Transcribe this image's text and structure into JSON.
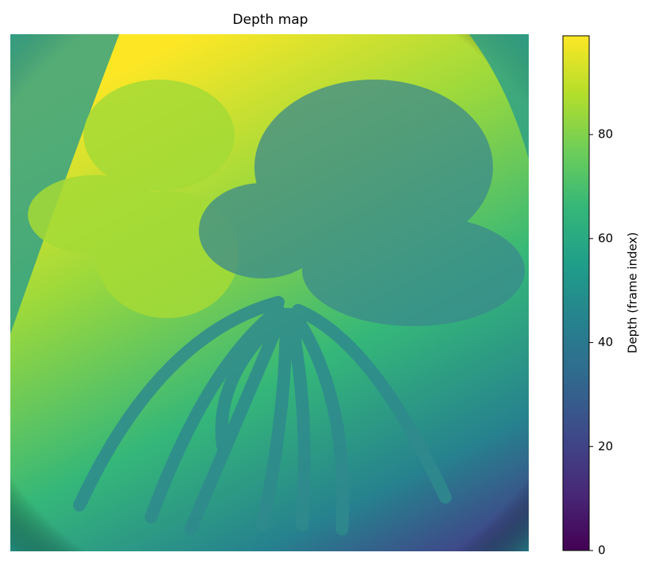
{
  "chart_data": {
    "type": "image",
    "title": "Depth map",
    "colormap": "viridis",
    "colorbar": {
      "label": "Depth (frame index)",
      "lim": [
        0,
        99
      ],
      "ticks": [
        0,
        20,
        40,
        60,
        80
      ]
    }
  }
}
